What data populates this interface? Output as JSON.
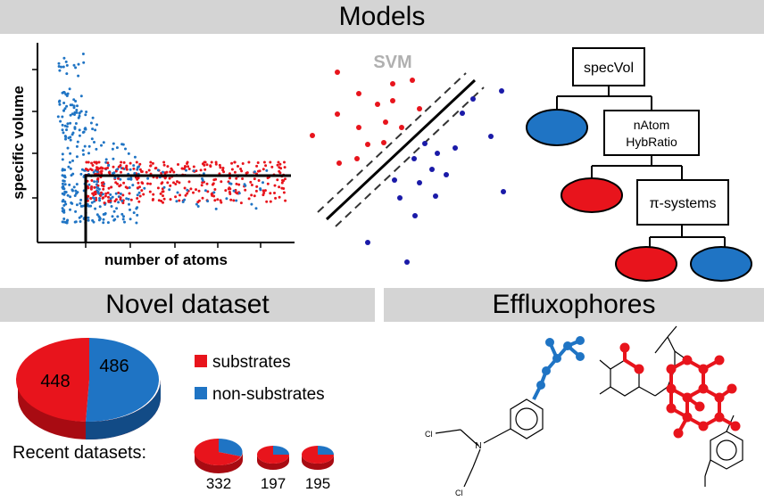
{
  "sections": {
    "models": "Models",
    "novel": "Novel dataset",
    "efflux": "Effluxophores"
  },
  "scatter": {
    "ylabel": "specific volume",
    "xlabel": "number of atoms"
  },
  "svm": {
    "label": "SVM"
  },
  "tree": {
    "root": "specVol",
    "node2_line1": "nAtom",
    "node2_line2": "HybRatio",
    "node3": "π-systems"
  },
  "dataset": {
    "substrates_count": "448",
    "non_substrates_count": "486",
    "legend_substrates": "substrates",
    "legend_non_substrates": "non-substrates",
    "recent_label": "Recent datasets:",
    "recent": [
      "332",
      "197",
      "195"
    ]
  },
  "molecule_labels": {
    "cl_top": "Cl",
    "cl_bottom": "Cl",
    "n_atom": "N"
  },
  "colors": {
    "red": "#e8141c",
    "blue": "#1f74c4",
    "svm_blue": "#1a1aa8",
    "band": "#d4d4d4"
  }
}
